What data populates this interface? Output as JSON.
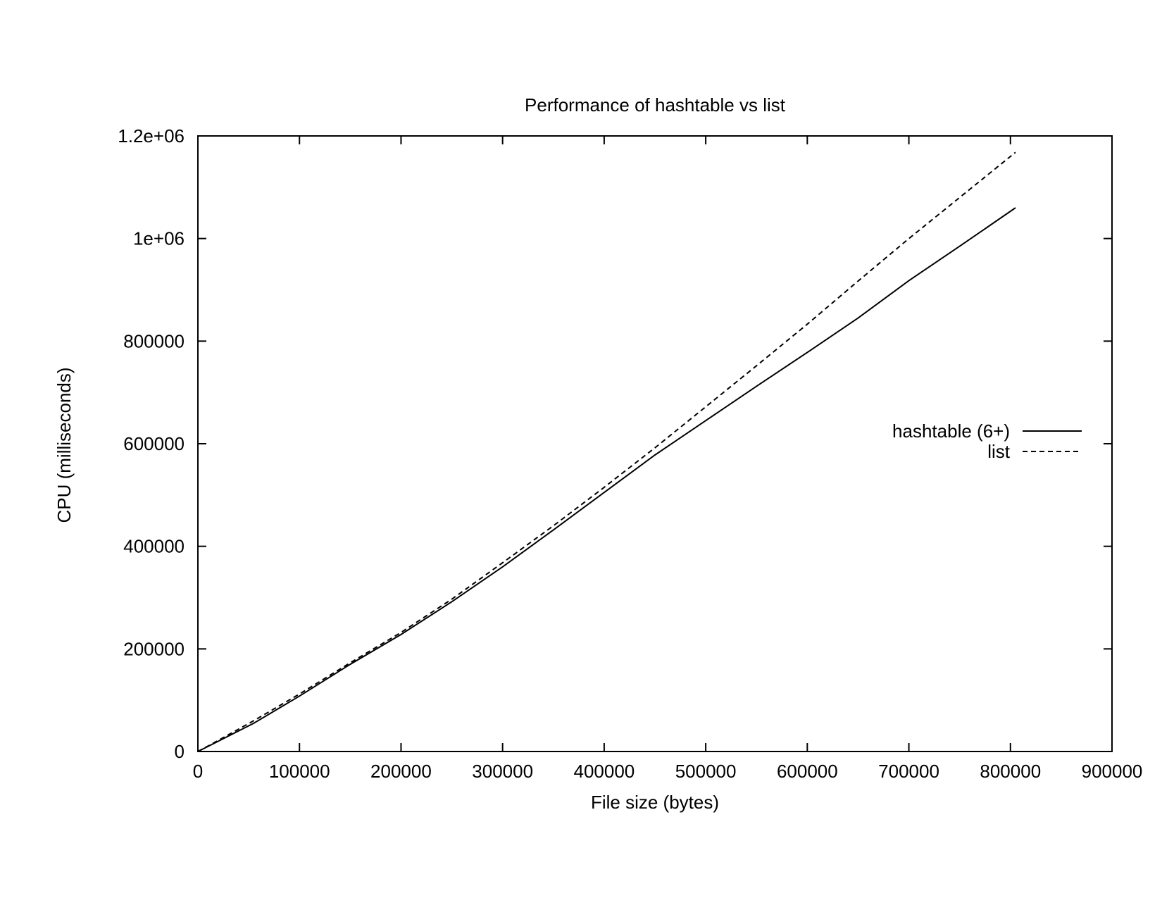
{
  "chart_data": {
    "type": "line",
    "title": "Performance of hashtable vs list",
    "xlabel": "File size (bytes)",
    "ylabel": "CPU (milliseconds)",
    "xlim": [
      0,
      900000
    ],
    "ylim": [
      0,
      1200000
    ],
    "x_ticks": [
      {
        "value": 0,
        "label": "0"
      },
      {
        "value": 100000,
        "label": "100000"
      },
      {
        "value": 200000,
        "label": "200000"
      },
      {
        "value": 300000,
        "label": "300000"
      },
      {
        "value": 400000,
        "label": "400000"
      },
      {
        "value": 500000,
        "label": "500000"
      },
      {
        "value": 600000,
        "label": "600000"
      },
      {
        "value": 700000,
        "label": "700000"
      },
      {
        "value": 800000,
        "label": "800000"
      },
      {
        "value": 900000,
        "label": "900000"
      }
    ],
    "y_ticks": [
      {
        "value": 0,
        "label": "0"
      },
      {
        "value": 200000,
        "label": "200000"
      },
      {
        "value": 400000,
        "label": "400000"
      },
      {
        "value": 600000,
        "label": "600000"
      },
      {
        "value": 800000,
        "label": "800000"
      },
      {
        "value": 1000000,
        "label": "1e+06"
      },
      {
        "value": 1200000,
        "label": "1.2e+06"
      }
    ],
    "grid": false,
    "legend_position": "right",
    "series": [
      {
        "name": "hashtable (6+)",
        "line_style": "solid",
        "color": "#000000",
        "x": [
          0,
          15000,
          55000,
          100000,
          150000,
          200000,
          250000,
          300000,
          350000,
          400000,
          450000,
          500000,
          550000,
          600000,
          650000,
          700000,
          750000,
          805000
        ],
        "y": [
          0,
          15000,
          55000,
          108000,
          170000,
          228000,
          292000,
          360000,
          432000,
          505000,
          578000,
          645000,
          712000,
          778000,
          845000,
          918000,
          985000,
          1060000
        ]
      },
      {
        "name": "list",
        "line_style": "dashed",
        "color": "#000000",
        "x": [
          0,
          15000,
          55000,
          100000,
          150000,
          200000,
          250000,
          300000,
          350000,
          400000,
          450000,
          500000,
          550000,
          600000,
          650000,
          700000,
          750000,
          805000
        ],
        "y": [
          0,
          16000,
          60000,
          112000,
          173000,
          232000,
          297000,
          368000,
          440000,
          515000,
          592000,
          672000,
          752000,
          833000,
          917000,
          1000000,
          1080000,
          1168000
        ]
      }
    ]
  }
}
